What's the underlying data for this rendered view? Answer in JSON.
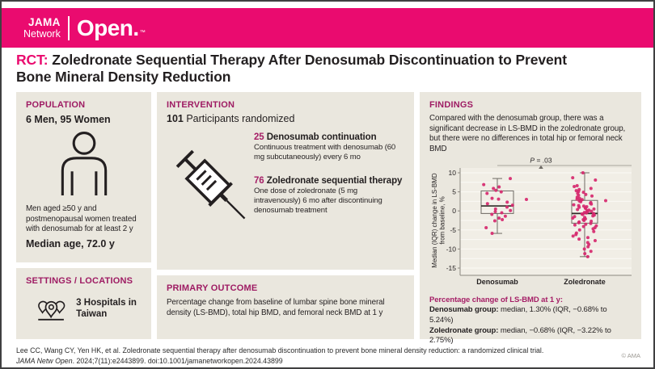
{
  "header": {
    "logo_jama": "JAMA",
    "logo_network": "Network",
    "logo_open": "Open.",
    "logo_tm": "™"
  },
  "title": {
    "tag": "RCT:",
    "line1": " Zoledronate Sequential Therapy After Denosumab Discontinuation to Prevent",
    "line2": "Bone Mineral Density Reduction"
  },
  "population": {
    "heading": "POPULATION",
    "counts": "6 Men, 95 Women",
    "icon": "person-icon",
    "description": "Men aged ≥50 y and postmenopausal women treated with denosumab for at least 2 y",
    "median_age": "Median age, 72.0 y"
  },
  "settings": {
    "heading": "SETTINGS / LOCATIONS",
    "icon": "map-pins-icon",
    "value": "3 Hospitals in Taiwan"
  },
  "intervention": {
    "heading": "INTERVENTION",
    "randomized_count": "101",
    "randomized_label": " Participants randomized",
    "icon": "syringe-icon",
    "arms": [
      {
        "count": "25 ",
        "name": "Denosumab continuation",
        "description": "Continuous treatment with denosumab (60 mg subcutaneously) every 6 mo"
      },
      {
        "count": "76 ",
        "name": "Zoledronate sequential therapy",
        "description": "One dose of zoledronate (5 mg intravenously) 6 mo after discontinuing denosumab treatment"
      }
    ]
  },
  "primary_outcome": {
    "heading": "PRIMARY OUTCOME",
    "description": "Percentage change from baseline of lumbar spine bone mineral density (LS-BMD), total hip BMD, and femoral neck BMD at 1 y"
  },
  "findings": {
    "heading": "FINDINGS",
    "summary": "Compared with the denosumab group, there was a significant decrease in LS-BMD in the zoledronate group, but there were no differences in total hip or femoral neck BMD",
    "result_heading": "Percentage change of LS-BMD at 1 y:",
    "results": [
      {
        "label": "Denosumab group:",
        "value": " median, 1.30% (IQR, −0.68% to 5.24%)"
      },
      {
        "label": "Zoledronate group:",
        "value": " median, −0.68% (IQR, −3.22% to 2.75%)"
      }
    ]
  },
  "chart_data": {
    "type": "scatter",
    "subtype": "box-plot-with-jittered-points",
    "title": "",
    "p_label_italic": "P",
    "p_label_rest": " = .03",
    "ylabel": "Median (IQR) change in LS-BMD from baseline, %",
    "ylabel_lines": [
      "Median (IQR) change in LS-BMD",
      "from baseline, %"
    ],
    "ylim": [
      -15,
      10
    ],
    "yticks": [
      10,
      5,
      0,
      -5,
      -10,
      -15
    ],
    "grid_step": 2.5,
    "grid": true,
    "legend_position": "none",
    "categories": [
      "Denosumab",
      "Zoledronate"
    ],
    "boxes": [
      {
        "group": "Denosumab",
        "median": 1.3,
        "q1": -0.68,
        "q3": 5.24,
        "whisker_low": -5.9,
        "whisker_high": 8.5
      },
      {
        "group": "Zoledronate",
        "median": -0.68,
        "q1": -3.22,
        "q3": 2.75,
        "whisker_low": -12.0,
        "whisker_high": 10.0
      }
    ],
    "points": {
      "Denosumab": [
        8.5,
        6.9,
        6.3,
        5.9,
        5.4,
        5.0,
        4.6,
        3.3,
        3.1,
        {
          "v": 3.0,
          "dx": 36
        },
        2.3,
        1.9,
        1.5,
        1.0,
        0.5,
        0.1,
        -0.2,
        -0.5,
        -0.9,
        -1.4,
        -1.9,
        -2.3,
        -2.6,
        -4.4,
        -5.9
      ],
      "Zoledronate": [
        10.0,
        8.7,
        8.1,
        6.6,
        6.4,
        5.9,
        5.6,
        5.3,
        5.1,
        4.9,
        4.6,
        4.3,
        4.1,
        3.9,
        3.6,
        3.3,
        3.1,
        2.95,
        2.8,
        {
          "v": 2.7,
          "dx": 26
        },
        2.6,
        2.4,
        2.2,
        2.0,
        1.8,
        1.6,
        1.4,
        1.25,
        1.1,
        0.95,
        0.8,
        0.65,
        0.5,
        0.35,
        0.2,
        0.05,
        -0.1,
        -0.25,
        -0.4,
        -0.55,
        -0.68,
        -0.8,
        -0.95,
        -1.1,
        -1.3,
        -1.5,
        -1.7,
        -1.9,
        -2.1,
        -2.3,
        -2.5,
        -2.7,
        -2.9,
        -3.1,
        -3.3,
        -3.5,
        -3.7,
        -3.9,
        -4.1,
        -4.4,
        -4.7,
        -5.0,
        -5.4,
        -5.8,
        -6.2,
        -6.6,
        -7.0,
        -7.4,
        -7.8,
        -8.3,
        -8.8,
        -9.4,
        -10.0,
        -10.6,
        -11.2,
        -12.0
      ]
    }
  },
  "footer": {
    "citation_line1": "Lee CC, Wang CY, Yen HK, et al. Zoledronate sequential therapy after denosumab discontinuation to prevent bone mineral density reduction: a randomized clinical trial.",
    "citation_journal": "JAMA Netw Open",
    "citation_line2_rest": ". 2024;7(11):e2443899. doi:10.1001/jamanetworkopen.2024.43899",
    "copyright": "© AMA"
  },
  "colors": {
    "brand_pink": "#EA0B6F",
    "heading_magenta": "#9E1B63",
    "panel_bg": "#EAE7DE",
    "plot_bg": "#F1EEE6",
    "gridline": "#FBFAF5",
    "axis": "#8C8880",
    "box_stroke": "#6F6B64",
    "median_stroke": "#2F2B26",
    "point": "#D6286E",
    "text": "#231F20"
  }
}
